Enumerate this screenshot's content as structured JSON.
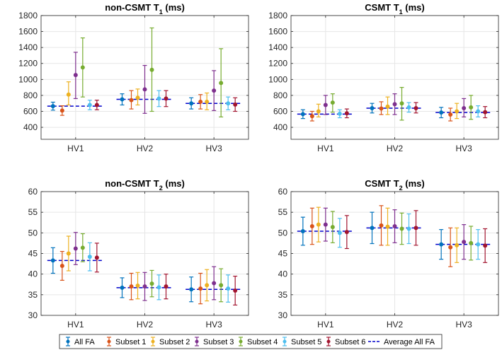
{
  "colors": {
    "All FA": "#0072BD",
    "Subset 1": "#D95319",
    "Subset 2": "#EDB120",
    "Subset 3": "#7E2F8E",
    "Subset 4": "#77AC30",
    "Subset 5": "#4DBEEE",
    "Subset 6": "#A2142F",
    "Average All FA": "#0000CC"
  },
  "legend": {
    "entries": [
      "All FA",
      "Subset 1",
      "Subset 2",
      "Subset 3",
      "Subset 4",
      "Subset 5",
      "Subset 6",
      "Average All FA"
    ]
  },
  "chart_data": [
    {
      "id": "noncsmt-t1",
      "type": "errorbar",
      "title_main": "non-CSMT T",
      "title_sub": "1",
      "title_unit": " (ms)",
      "categories": [
        "HV1",
        "HV2",
        "HV3"
      ],
      "ylim": [
        250,
        1800
      ],
      "yticks": [
        400,
        600,
        800,
        1000,
        1200,
        1400,
        1600,
        1800
      ],
      "grid": true,
      "series": [
        {
          "name": "All FA",
          "values": [
            665,
            750,
            700
          ],
          "errors": [
            [
              615,
              715
            ],
            [
              680,
              820
            ],
            [
              630,
              770
            ]
          ]
        },
        {
          "name": "Subset 1",
          "values": [
            610,
            740,
            720
          ],
          "errors": [
            [
              550,
              670
            ],
            [
              630,
              860
            ],
            [
              630,
              810
            ]
          ]
        },
        {
          "name": "Subset 2",
          "values": [
            810,
            770,
            720
          ],
          "errors": [
            [
              680,
              970
            ],
            [
              680,
              880
            ],
            [
              620,
              830
            ]
          ]
        },
        {
          "name": "Subset 3",
          "values": [
            1055,
            875,
            860
          ],
          "errors": [
            [
              760,
              1340
            ],
            [
              575,
              1175
            ],
            [
              610,
              1110
            ]
          ]
        },
        {
          "name": "Subset 4",
          "values": [
            1150,
            1120,
            955
          ],
          "errors": [
            [
              780,
              1520
            ],
            [
              600,
              1645
            ],
            [
              530,
              1385
            ]
          ]
        },
        {
          "name": "Subset 5",
          "values": [
            680,
            760,
            700
          ],
          "errors": [
            [
              620,
              740
            ],
            [
              660,
              860
            ],
            [
              620,
              780
            ]
          ]
        },
        {
          "name": "Subset 6",
          "values": [
            680,
            760,
            685
          ],
          "errors": [
            [
              620,
              740
            ],
            [
              660,
              860
            ],
            [
              600,
              770
            ]
          ]
        }
      ],
      "average_all_fa": [
        665,
        750,
        700
      ]
    },
    {
      "id": "csmt-t1",
      "type": "errorbar",
      "title_main": "CSMT T",
      "title_sub": "1",
      "title_unit": " (ms)",
      "categories": [
        "HV1",
        "HV2",
        "HV3"
      ],
      "ylim": [
        250,
        1800
      ],
      "yticks": [
        400,
        600,
        800,
        1000,
        1200,
        1400,
        1600,
        1800
      ],
      "grid": true,
      "series": [
        {
          "name": "All FA",
          "values": [
            565,
            640,
            585
          ],
          "errors": [
            [
              510,
              620
            ],
            [
              580,
              700
            ],
            [
              520,
              650
            ]
          ]
        },
        {
          "name": "Subset 1",
          "values": [
            540,
            635,
            560
          ],
          "errors": [
            [
              480,
              600
            ],
            [
              560,
              720
            ],
            [
              480,
              640
            ]
          ]
        },
        {
          "name": "Subset 2",
          "values": [
            600,
            660,
            600
          ],
          "errors": [
            [
              530,
              690
            ],
            [
              560,
              780
            ],
            [
              510,
              700
            ]
          ]
        },
        {
          "name": "Subset 3",
          "values": [
            680,
            690,
            640
          ],
          "errors": [
            [
              560,
              800
            ],
            [
              560,
              820
            ],
            [
              530,
              760
            ]
          ]
        },
        {
          "name": "Subset 4",
          "values": [
            710,
            700,
            650
          ],
          "errors": [
            [
              590,
              820
            ],
            [
              490,
              900
            ],
            [
              500,
              800
            ]
          ]
        },
        {
          "name": "Subset 5",
          "values": [
            570,
            650,
            600
          ],
          "errors": [
            [
              520,
              620
            ],
            [
              590,
              710
            ],
            [
              530,
              670
            ]
          ]
        },
        {
          "name": "Subset 6",
          "values": [
            575,
            640,
            590
          ],
          "errors": [
            [
              520,
              630
            ],
            [
              580,
              710
            ],
            [
              520,
              660
            ]
          ]
        }
      ],
      "average_all_fa": [
        565,
        640,
        585
      ]
    },
    {
      "id": "noncsmt-t2",
      "type": "errorbar",
      "title_main": "non-CSMT T",
      "title_sub": "2",
      "title_unit": " (ms)",
      "categories": [
        "HV1",
        "HV2",
        "HV3"
      ],
      "ylim": [
        30,
        60
      ],
      "yticks": [
        30,
        35,
        40,
        45,
        50,
        55,
        60
      ],
      "grid": true,
      "series": [
        {
          "name": "All FA",
          "values": [
            43.3,
            36.7,
            36.3
          ],
          "errors": [
            [
              40.2,
              46.4
            ],
            [
              34.3,
              39.1
            ],
            [
              33.3,
              39.3
            ]
          ]
        },
        {
          "name": "Subset 1",
          "values": [
            42.0,
            37.0,
            36.5
          ],
          "errors": [
            [
              38.5,
              45.5
            ],
            [
              33.8,
              40.2
            ],
            [
              32.8,
              40.2
            ]
          ]
        },
        {
          "name": "Subset 2",
          "values": [
            45.0,
            37.2,
            37.3
          ],
          "errors": [
            [
              40.8,
              49.2
            ],
            [
              34.0,
              40.4
            ],
            [
              33.5,
              41.1
            ]
          ]
        },
        {
          "name": "Subset 3",
          "values": [
            46.2,
            37.0,
            37.8
          ],
          "errors": [
            [
              42.3,
              50.1
            ],
            [
              33.6,
              40.4
            ],
            [
              33.8,
              41.8
            ]
          ]
        },
        {
          "name": "Subset 4",
          "values": [
            46.4,
            37.7,
            37.3
          ],
          "errors": [
            [
              43.0,
              49.8
            ],
            [
              34.5,
              40.9
            ],
            [
              33.3,
              41.3
            ]
          ]
        },
        {
          "name": "Subset 5",
          "values": [
            44.2,
            36.8,
            36.5
          ],
          "errors": [
            [
              40.8,
              47.6
            ],
            [
              33.8,
              39.8
            ],
            [
              33.2,
              39.8
            ]
          ]
        },
        {
          "name": "Subset 6",
          "values": [
            44.0,
            37.0,
            36.0
          ],
          "errors": [
            [
              40.5,
              47.5
            ],
            [
              34.0,
              40.0
            ],
            [
              32.5,
              39.5
            ]
          ]
        }
      ],
      "average_all_fa": [
        43.3,
        36.7,
        36.3
      ]
    },
    {
      "id": "csmt-t2",
      "type": "errorbar",
      "title_main": "CSMT T",
      "title_sub": "2",
      "title_unit": " (ms)",
      "categories": [
        "HV1",
        "HV2",
        "HV3"
      ],
      "ylim": [
        30,
        60
      ],
      "yticks": [
        30,
        35,
        40,
        45,
        50,
        55,
        60
      ],
      "grid": true,
      "series": [
        {
          "name": "All FA",
          "values": [
            50.4,
            51.2,
            47.2
          ],
          "errors": [
            [
              47.0,
              53.8
            ],
            [
              47.4,
              55.0
            ],
            [
              43.6,
              50.8
            ]
          ]
        },
        {
          "name": "Subset 1",
          "values": [
            51.6,
            51.8,
            46.5
          ],
          "errors": [
            [
              47.2,
              56.0
            ],
            [
              47.0,
              56.6
            ],
            [
              41.8,
              51.2
            ]
          ]
        },
        {
          "name": "Subset 2",
          "values": [
            52.0,
            51.5,
            47.0
          ],
          "errors": [
            [
              47.8,
              56.2
            ],
            [
              47.0,
              56.0
            ],
            [
              42.8,
              51.2
            ]
          ]
        },
        {
          "name": "Subset 3",
          "values": [
            52.0,
            51.6,
            47.8
          ],
          "errors": [
            [
              48.0,
              56.0
            ],
            [
              47.6,
              55.6
            ],
            [
              43.6,
              52.0
            ]
          ]
        },
        {
          "name": "Subset 4",
          "values": [
            51.4,
            51.0,
            47.5
          ],
          "errors": [
            [
              47.6,
              55.2
            ],
            [
              47.2,
              54.8
            ],
            [
              43.4,
              51.6
            ]
          ]
        },
        {
          "name": "Subset 5",
          "values": [
            50.0,
            51.0,
            47.2
          ],
          "errors": [
            [
              46.5,
              53.5
            ],
            [
              47.4,
              54.6
            ],
            [
              43.6,
              50.8
            ]
          ]
        },
        {
          "name": "Subset 6",
          "values": [
            50.2,
            51.2,
            46.9
          ],
          "errors": [
            [
              46.2,
              54.2
            ],
            [
              47.0,
              55.4
            ],
            [
              42.8,
              51.0
            ]
          ]
        }
      ],
      "average_all_fa": [
        50.4,
        51.2,
        47.2
      ]
    }
  ]
}
